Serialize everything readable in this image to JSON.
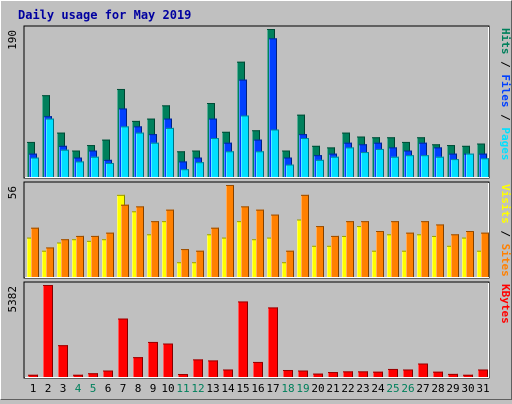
{
  "chart_data": {
    "title": "Daily usage for May 2019",
    "x": [
      "1",
      "2",
      "3",
      "4",
      "5",
      "6",
      "7",
      "8",
      "9",
      "10",
      "11",
      "12",
      "13",
      "14",
      "15",
      "16",
      "17",
      "18",
      "19",
      "20",
      "21",
      "22",
      "23",
      "24",
      "25",
      "26",
      "27",
      "28",
      "29",
      "30",
      "31"
    ],
    "weekend_days": [
      "4",
      "5",
      "11",
      "12",
      "18",
      "19",
      "25",
      "26"
    ],
    "colors": {
      "hits": "#00805c",
      "files": "#0040ff",
      "pages": "#00e0ff",
      "visits": "#ffff00",
      "sites": "#ff8000",
      "kbytes": "#ff0000",
      "title": "#0000a0",
      "weekday_label": "#000000",
      "weekend_label": "#00805c",
      "background": "#c0c0c0"
    },
    "panels": [
      {
        "type": "bar",
        "ymax_label": "190",
        "ylim": [
          0,
          190
        ],
        "legend": [
          "Pages",
          "Files",
          "Hits"
        ],
        "series": [
          {
            "name": "Hits",
            "values": [
              45,
              105,
              57,
              34,
              41,
              48,
              113,
              72,
              75,
              92,
              33,
              34,
              95,
              58,
              148,
              60,
              190,
              34,
              80,
              40,
              38,
              57,
              52,
              51,
              51,
              45,
              51,
              42,
              41,
              40,
              43
            ]
          },
          {
            "name": "Files",
            "values": [
              30,
              78,
              40,
              25,
              34,
              22,
              88,
              65,
              55,
              75,
              20,
              25,
              75,
              44,
              125,
              48,
              178,
              25,
              55,
              28,
              30,
              44,
              42,
              44,
              38,
              34,
              44,
              38,
              30,
              30,
              30
            ]
          },
          {
            "name": "Pages",
            "values": [
              25,
              75,
              35,
              20,
              26,
              18,
              65,
              57,
              44,
              63,
              10,
              19,
              50,
              33,
              79,
              33,
              61,
              16,
              50,
              22,
              26,
              38,
              32,
              36,
              26,
              28,
              28,
              26,
              23,
              30,
              24
            ]
          }
        ]
      },
      {
        "type": "bar",
        "ymax_label": "56",
        "ylim": [
          0,
          56
        ],
        "legend": [
          "Sites",
          "Visits"
        ],
        "series": [
          {
            "name": "Visits",
            "values": [
              24,
              16,
              21,
              23,
              22,
              23,
              50,
              40,
              26,
              34,
              9,
              9,
              26,
              24,
              34,
              23,
              24,
              9,
              35,
              19,
              19,
              25,
              31,
              16,
              26,
              16,
              26,
              25,
              19,
              24,
              16
            ]
          },
          {
            "name": "Sites",
            "values": [
              30,
              18,
              23,
              25,
              25,
              27,
              44,
              43,
              34,
              41,
              17,
              16,
              30,
              56,
              43,
              41,
              38,
              16,
              50,
              31,
              25,
              34,
              34,
              28,
              34,
              27,
              34,
              32,
              26,
              28,
              27
            ]
          }
        ]
      },
      {
        "type": "bar",
        "ymax_label": "5382",
        "ylim": [
          0,
          5382
        ],
        "legend": [
          "KBytes"
        ],
        "series": [
          {
            "name": "KBytes",
            "values": [
              130,
              5382,
              1860,
              130,
              220,
              380,
              3420,
              1160,
              2050,
              1960,
              175,
              1030,
              970,
              440,
              4420,
              880,
              4070,
              410,
              380,
              200,
              290,
              330,
              330,
              310,
              470,
              440,
              790,
              310,
              180,
              130,
              440
            ]
          }
        ]
      }
    ]
  }
}
